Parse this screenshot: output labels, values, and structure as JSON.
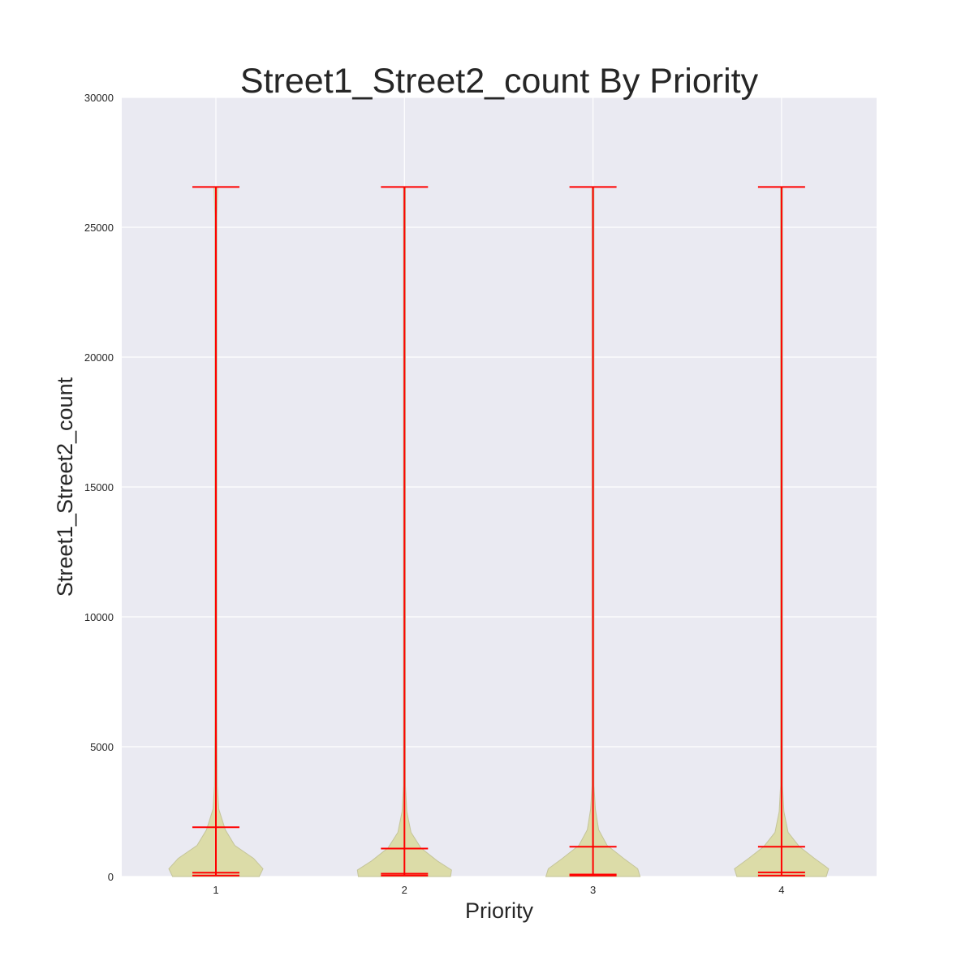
{
  "chart_data": {
    "type": "violin",
    "title": "Street1_Street2_count By Priority",
    "xlabel": "Priority",
    "ylabel": "Street1_Street2_count",
    "ylim": [
      0,
      30000
    ],
    "yticks": [
      "0",
      "5000",
      "10000",
      "15000",
      "20000",
      "25000",
      "30000"
    ],
    "categories": [
      "1",
      "2",
      "3",
      "4"
    ],
    "grid": true,
    "legend": "none",
    "series": [
      {
        "category": "1",
        "min": 40,
        "mean": 150,
        "max": 26550,
        "density": [
          [
            0,
            0.92
          ],
          [
            300,
            1.0
          ],
          [
            700,
            0.8
          ],
          [
            1200,
            0.4
          ],
          [
            1800,
            0.2
          ],
          [
            2600,
            0.06
          ],
          [
            3500,
            0.03
          ],
          [
            6000,
            0.02
          ],
          [
            25400,
            0.02
          ],
          [
            26550,
            0.04
          ]
        ]
      },
      {
        "category": "2",
        "min": 40,
        "mean": 110,
        "max": 26550,
        "density": [
          [
            0,
            0.98
          ],
          [
            250,
            1.0
          ],
          [
            600,
            0.7
          ],
          [
            1100,
            0.35
          ],
          [
            1700,
            0.14
          ],
          [
            2500,
            0.05
          ],
          [
            3500,
            0.02
          ],
          [
            26550,
            0.02
          ]
        ]
      },
      {
        "category": "3",
        "min": 40,
        "mean": 80,
        "max": 26550,
        "density": [
          [
            0,
            1.0
          ],
          [
            300,
            0.95
          ],
          [
            700,
            0.65
          ],
          [
            1200,
            0.3
          ],
          [
            1800,
            0.12
          ],
          [
            2600,
            0.05
          ],
          [
            3500,
            0.02
          ],
          [
            26550,
            0.02
          ]
        ]
      },
      {
        "category": "4",
        "min": 40,
        "mean": 160,
        "max": 26550,
        "density": [
          [
            0,
            0.95
          ],
          [
            300,
            1.0
          ],
          [
            700,
            0.7
          ],
          [
            1150,
            0.38
          ],
          [
            1700,
            0.14
          ],
          [
            2500,
            0.05
          ],
          [
            3500,
            0.02
          ],
          [
            26550,
            0.02
          ]
        ]
      }
    ],
    "reference_line": 1100,
    "colors": {
      "plot_background": "#eaeaf2",
      "grid": "#ffffff",
      "violin_fill": "#dcdca8",
      "violin_edge": "#c4c49a",
      "extrema_lines": "#ff0000"
    }
  }
}
